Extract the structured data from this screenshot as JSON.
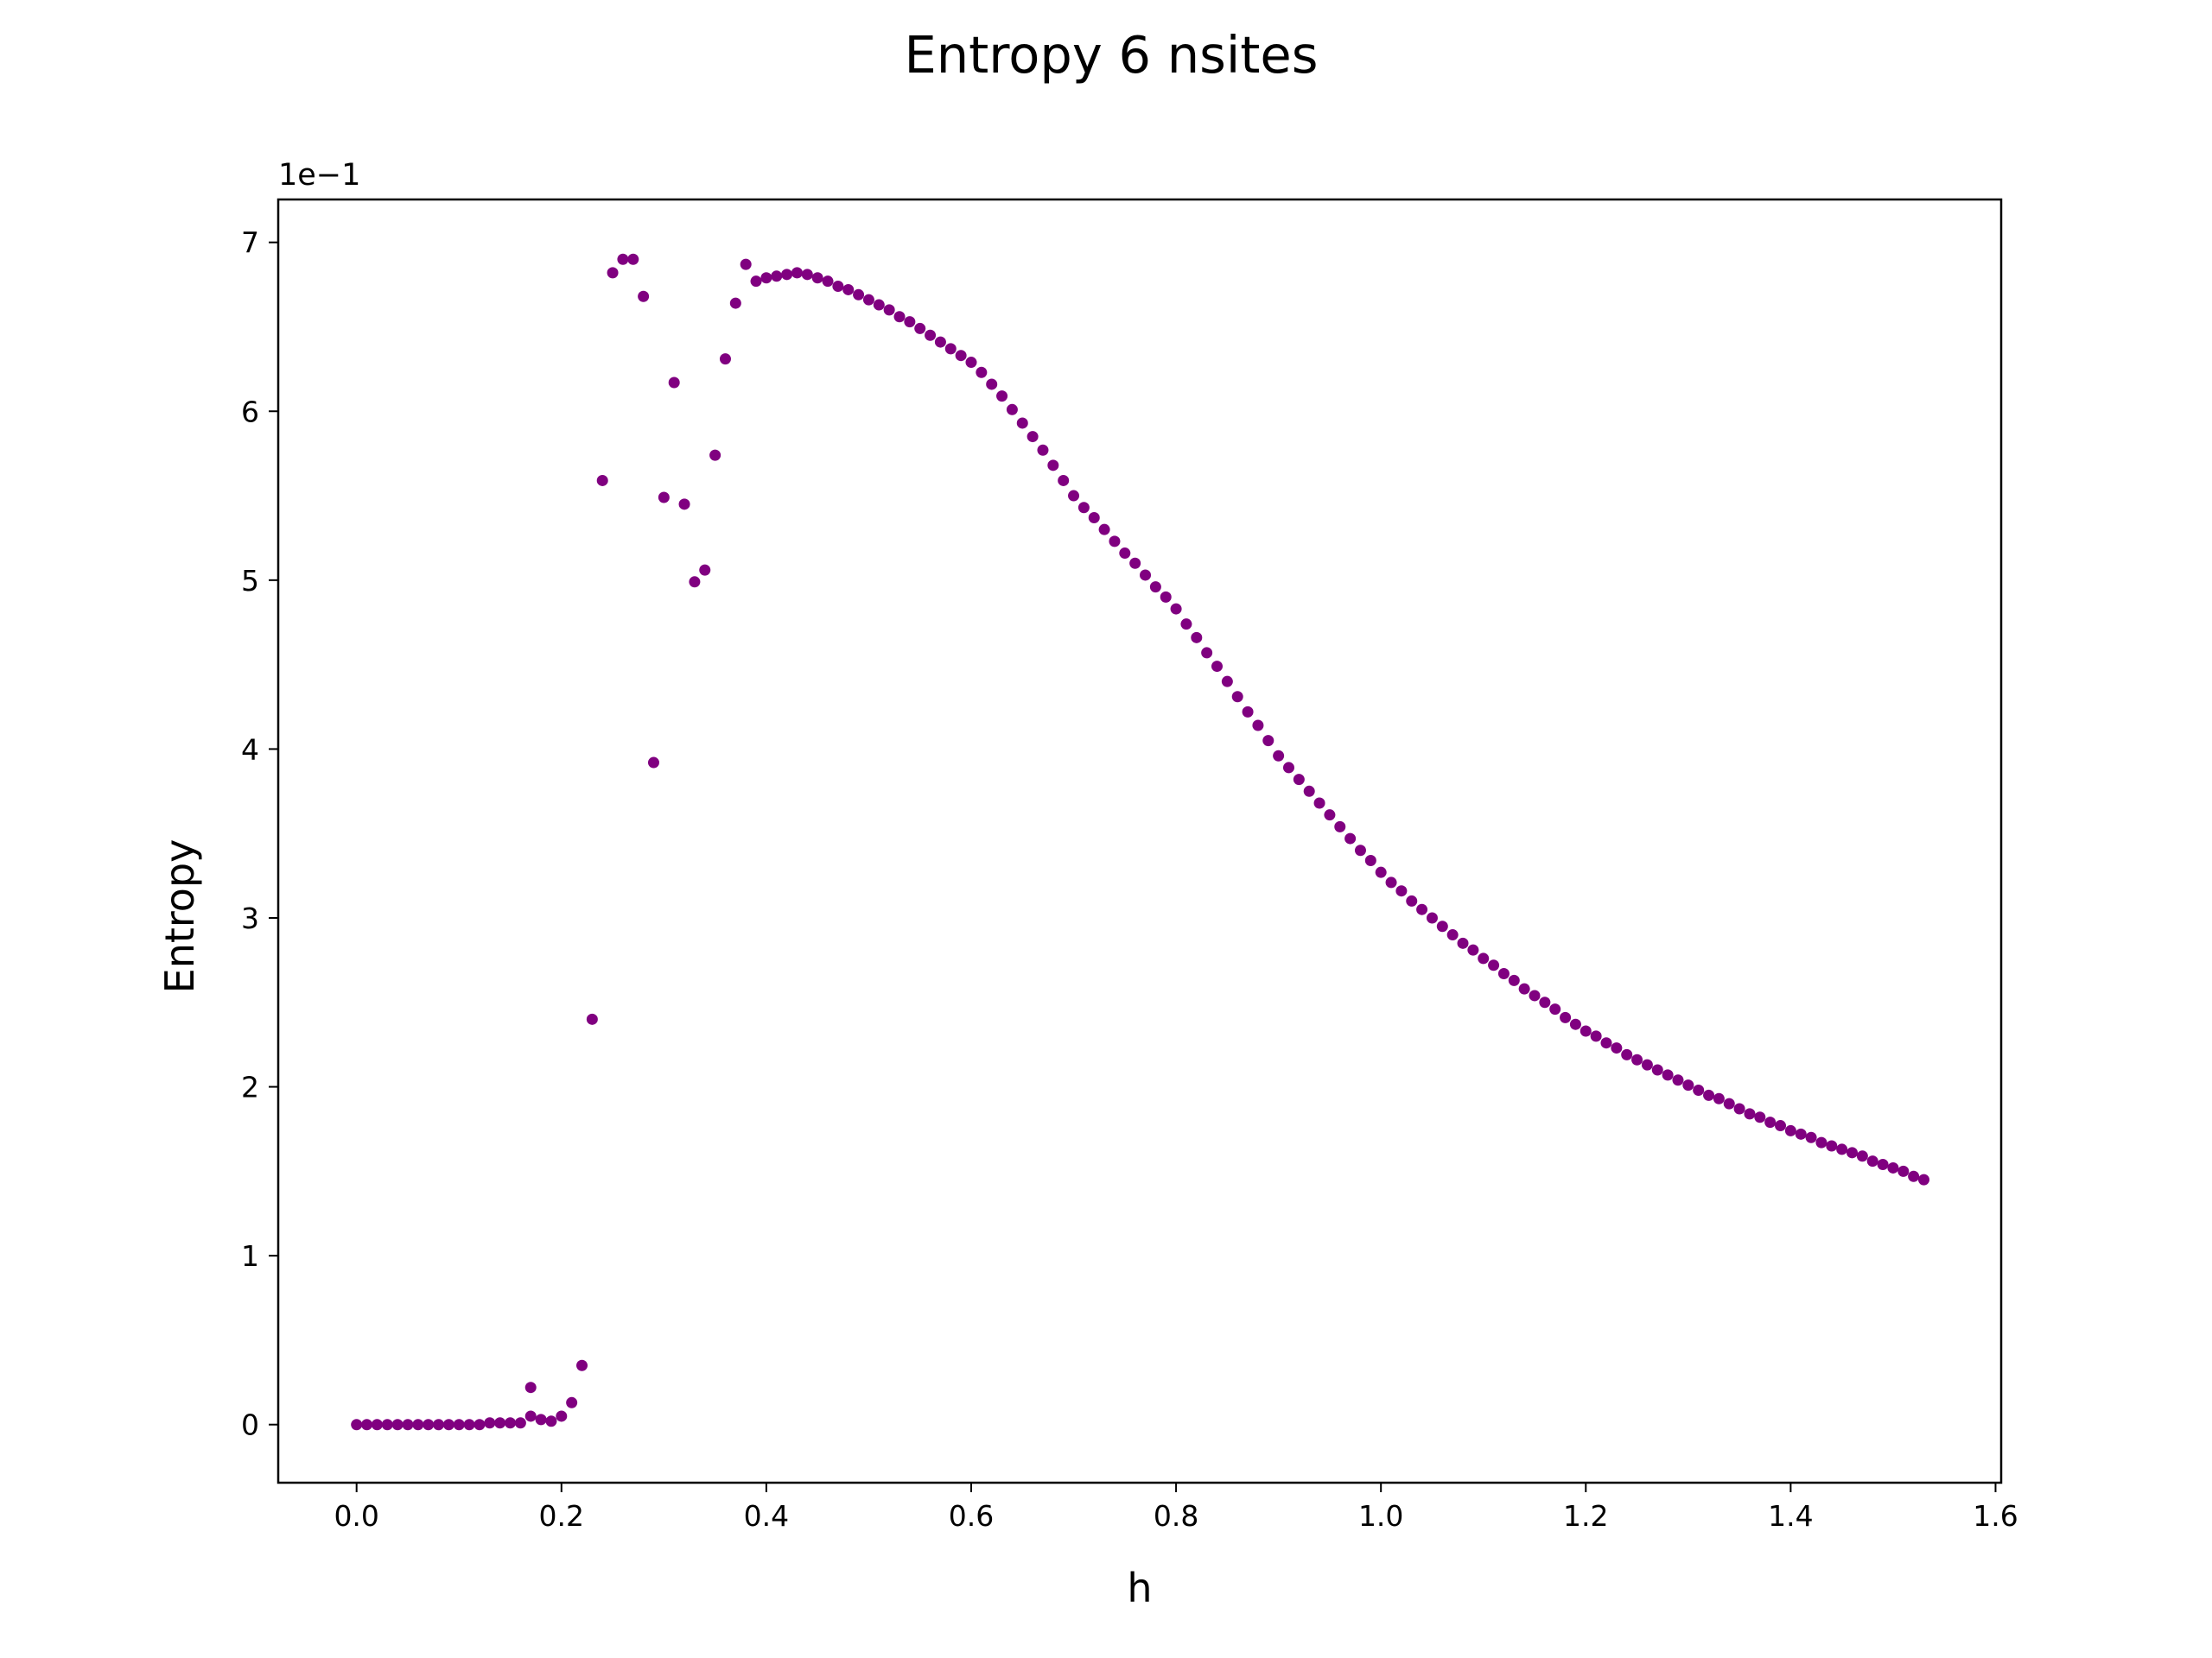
{
  "chart_data": {
    "type": "scatter",
    "title": "Entropy 6 nsites",
    "x_label": "h",
    "y_label": "Entropy",
    "y_offset_label": "1e−1",
    "color": "#800080",
    "x": [
      0,
      0.01,
      0.02,
      0.03,
      0.04,
      0.05,
      0.06,
      0.07,
      0.08,
      0.09,
      0.1,
      0.11,
      0.12,
      0.13,
      0.14,
      0.15,
      0.16,
      0.17,
      0.17,
      0.18,
      0.19,
      0.2,
      0.21,
      0.22,
      0.23,
      0.24,
      0.25,
      0.26,
      0.27,
      0.28,
      0.29,
      0.3,
      0.31,
      0.32,
      0.33,
      0.34,
      0.35,
      0.36,
      0.37,
      0.38,
      0.39,
      0.4,
      0.41,
      0.42,
      0.43,
      0.44,
      0.45,
      0.46,
      0.47,
      0.48,
      0.49,
      0.5,
      0.51,
      0.52,
      0.53,
      0.54,
      0.55,
      0.56,
      0.57,
      0.58,
      0.59,
      0.6,
      0.61,
      0.62,
      0.63,
      0.64,
      0.65,
      0.66,
      0.67,
      0.68,
      0.69,
      0.7,
      0.71,
      0.72,
      0.73,
      0.74,
      0.75,
      0.76,
      0.77,
      0.78,
      0.79,
      0.8,
      0.81,
      0.82,
      0.83,
      0.84,
      0.85,
      0.86,
      0.87,
      0.88,
      0.89,
      0.9,
      0.91,
      0.92,
      0.93,
      0.94,
      0.95,
      0.96,
      0.97,
      0.98,
      0.99,
      1.0,
      1.01,
      1.02,
      1.03,
      1.04,
      1.05,
      1.06,
      1.07,
      1.08,
      1.09,
      1.1,
      1.11,
      1.12,
      1.13,
      1.14,
      1.15,
      1.16,
      1.17,
      1.18,
      1.19,
      1.2,
      1.21,
      1.22,
      1.23,
      1.24,
      1.25,
      1.26,
      1.27,
      1.28,
      1.29,
      1.3,
      1.31,
      1.32,
      1.33,
      1.34,
      1.35,
      1.36,
      1.37,
      1.38,
      1.39,
      1.4,
      1.41,
      1.42,
      1.43,
      1.44,
      1.45,
      1.46,
      1.47,
      1.48,
      1.49,
      1.5,
      1.51,
      1.52,
      1.53
    ],
    "values": [
      0,
      0,
      0,
      0,
      0,
      0,
      0,
      0,
      0,
      0,
      0,
      0,
      0,
      0.01,
      0.01,
      0.01,
      0.01,
      0.22,
      0.05,
      0.03,
      0.02,
      0.05,
      0.13,
      0.35,
      2.4,
      5.59,
      6.82,
      6.9,
      6.9,
      6.68,
      3.92,
      5.49,
      6.17,
      5.45,
      4.99,
      5.06,
      5.74,
      6.31,
      6.64,
      6.87,
      6.77,
      6.79,
      6.8,
      6.81,
      6.82,
      6.81,
      6.79,
      6.77,
      6.74,
      6.72,
      6.69,
      6.66,
      6.63,
      6.6,
      6.56,
      6.53,
      6.49,
      6.45,
      6.41,
      6.37,
      6.33,
      6.29,
      6.23,
      6.16,
      6.09,
      6.01,
      5.93,
      5.85,
      5.77,
      5.68,
      5.59,
      5.5,
      5.43,
      5.37,
      5.3,
      5.23,
      5.16,
      5.1,
      5.03,
      4.96,
      4.9,
      4.83,
      4.74,
      4.66,
      4.57,
      4.49,
      4.4,
      4.31,
      4.22,
      4.14,
      4.05,
      3.96,
      3.89,
      3.82,
      3.75,
      3.68,
      3.61,
      3.54,
      3.47,
      3.4,
      3.34,
      3.27,
      3.21,
      3.16,
      3.1,
      3.05,
      3.0,
      2.95,
      2.9,
      2.85,
      2.81,
      2.76,
      2.72,
      2.67,
      2.63,
      2.58,
      2.54,
      2.5,
      2.46,
      2.41,
      2.37,
      2.33,
      2.3,
      2.26,
      2.23,
      2.19,
      2.16,
      2.13,
      2.1,
      2.07,
      2.04,
      2.01,
      1.98,
      1.95,
      1.93,
      1.9,
      1.87,
      1.84,
      1.82,
      1.79,
      1.77,
      1.74,
      1.72,
      1.7,
      1.67,
      1.65,
      1.63,
      1.61,
      1.59,
      1.56,
      1.54,
      1.52,
      1.5,
      1.47,
      1.45
    ],
    "xlim": [
      -0.0765,
      1.6055
    ],
    "xticks": [
      {
        "value": 0,
        "label": "0.0"
      },
      0.2,
      0.4,
      0.6,
      0.8,
      {
        "value": 1,
        "label": "1.0"
      },
      1.2,
      1.4,
      1.6
    ],
    "ylim": [
      -0.344,
      7.254
    ],
    "yticks": [
      0,
      1,
      2,
      3,
      4,
      5,
      6,
      7
    ],
    "grid": false
  }
}
